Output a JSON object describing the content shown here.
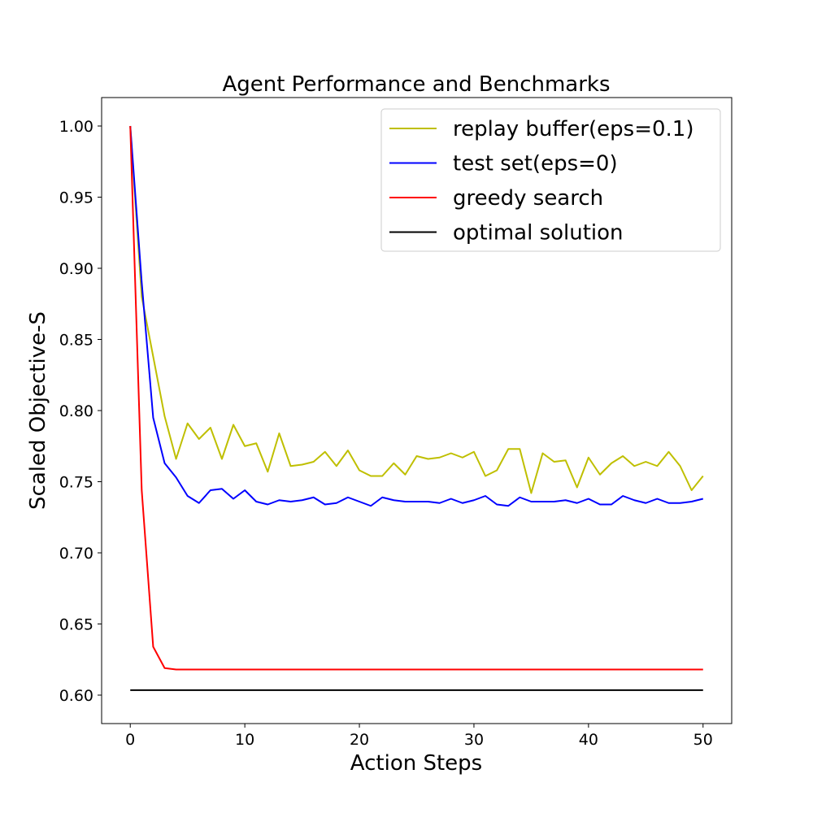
{
  "chart_data": {
    "type": "line",
    "title": "Agent Performance and Benchmarks",
    "xlabel": "Action Steps",
    "ylabel": "Scaled Objective-S",
    "xlim": [
      -2.5,
      52.5
    ],
    "ylim": [
      0.58,
      1.02
    ],
    "xticks": [
      0,
      10,
      20,
      30,
      40,
      50
    ],
    "yticks": [
      0.6,
      0.65,
      0.7,
      0.75,
      0.8,
      0.85,
      0.9,
      0.95,
      1.0
    ],
    "xtick_labels": [
      "0",
      "10",
      "20",
      "30",
      "40",
      "50"
    ],
    "ytick_labels": [
      "0.60",
      "0.65",
      "0.70",
      "0.75",
      "0.80",
      "0.85",
      "0.90",
      "0.95",
      "1.00"
    ],
    "grid": false,
    "legend_position": "top-right",
    "series": [
      {
        "name": "replay buffer(eps=0.1)",
        "color": "#bfbf00",
        "x": [
          0,
          1,
          2,
          3,
          4,
          5,
          6,
          7,
          8,
          9,
          10,
          11,
          12,
          13,
          14,
          15,
          16,
          17,
          18,
          19,
          20,
          21,
          22,
          23,
          24,
          25,
          26,
          27,
          28,
          29,
          30,
          31,
          32,
          33,
          34,
          35,
          36,
          37,
          38,
          39,
          40,
          41,
          42,
          43,
          44,
          45,
          46,
          47,
          48,
          49,
          50
        ],
        "values": [
          1.0,
          0.88,
          0.838,
          0.796,
          0.766,
          0.791,
          0.78,
          0.788,
          0.766,
          0.79,
          0.775,
          0.777,
          0.757,
          0.784,
          0.761,
          0.762,
          0.764,
          0.771,
          0.761,
          0.772,
          0.758,
          0.754,
          0.754,
          0.763,
          0.755,
          0.768,
          0.766,
          0.767,
          0.77,
          0.767,
          0.771,
          0.754,
          0.758,
          0.773,
          0.773,
          0.742,
          0.77,
          0.764,
          0.765,
          0.746,
          0.767,
          0.755,
          0.763,
          0.768,
          0.761,
          0.764,
          0.761,
          0.771,
          0.761,
          0.744,
          0.754
        ]
      },
      {
        "name": "test set(eps=0)",
        "color": "#0000ff",
        "x": [
          0,
          1,
          2,
          3,
          4,
          5,
          6,
          7,
          8,
          9,
          10,
          11,
          12,
          13,
          14,
          15,
          16,
          17,
          18,
          19,
          20,
          21,
          22,
          23,
          24,
          25,
          26,
          27,
          28,
          29,
          30,
          31,
          32,
          33,
          34,
          35,
          36,
          37,
          38,
          39,
          40,
          41,
          42,
          43,
          44,
          45,
          46,
          47,
          48,
          49,
          50
        ],
        "values": [
          1.0,
          0.89,
          0.795,
          0.763,
          0.753,
          0.74,
          0.735,
          0.744,
          0.745,
          0.738,
          0.744,
          0.736,
          0.734,
          0.737,
          0.736,
          0.737,
          0.739,
          0.734,
          0.735,
          0.739,
          0.736,
          0.733,
          0.739,
          0.737,
          0.736,
          0.736,
          0.736,
          0.735,
          0.738,
          0.735,
          0.737,
          0.74,
          0.734,
          0.733,
          0.739,
          0.736,
          0.736,
          0.736,
          0.737,
          0.735,
          0.738,
          0.734,
          0.734,
          0.74,
          0.737,
          0.735,
          0.738,
          0.735,
          0.735,
          0.736,
          0.738
        ]
      },
      {
        "name": "greedy search",
        "color": "#ff0000",
        "x": [
          0,
          1,
          2,
          3,
          4,
          5,
          6,
          7,
          8,
          9,
          10,
          11,
          12,
          13,
          14,
          15,
          16,
          17,
          18,
          19,
          20,
          21,
          22,
          23,
          24,
          25,
          26,
          27,
          28,
          29,
          30,
          31,
          32,
          33,
          34,
          35,
          36,
          37,
          38,
          39,
          40,
          41,
          42,
          43,
          44,
          45,
          46,
          47,
          48,
          49,
          50
        ],
        "values": [
          1.0,
          0.744,
          0.634,
          0.619,
          0.618,
          0.618,
          0.618,
          0.618,
          0.618,
          0.618,
          0.618,
          0.618,
          0.618,
          0.618,
          0.618,
          0.618,
          0.618,
          0.618,
          0.618,
          0.618,
          0.618,
          0.618,
          0.618,
          0.618,
          0.618,
          0.618,
          0.618,
          0.618,
          0.618,
          0.618,
          0.618,
          0.618,
          0.618,
          0.618,
          0.618,
          0.618,
          0.618,
          0.618,
          0.618,
          0.618,
          0.618,
          0.618,
          0.618,
          0.618,
          0.618,
          0.618,
          0.618,
          0.618,
          0.618,
          0.618,
          0.618
        ]
      },
      {
        "name": "optimal solution",
        "color": "#000000",
        "x": [
          0,
          50
        ],
        "values": [
          0.6035,
          0.6035
        ]
      }
    ]
  }
}
